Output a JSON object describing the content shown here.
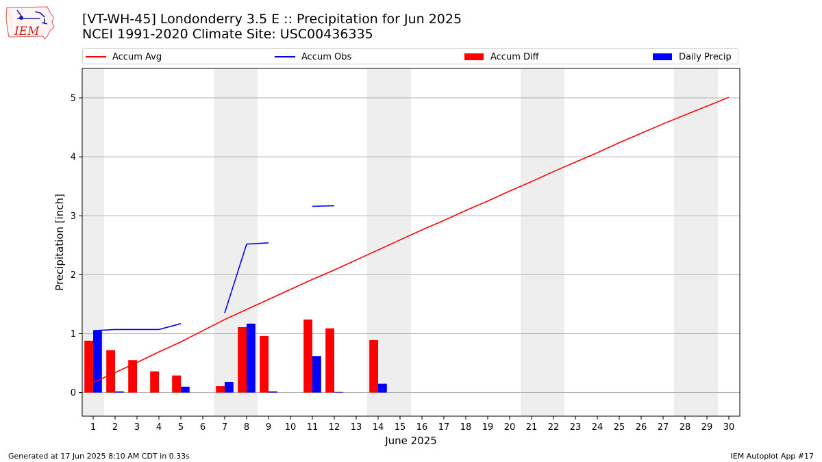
{
  "header": {
    "title_line1": "[VT-WH-45] Londonderry 3.5 E :: Precipitation for Jun 2025",
    "title_line2": "NCEI 1991-2020 Climate Site: USC00436335"
  },
  "logo": {
    "text": "IEM",
    "icon": "iowa-state-outline-logo"
  },
  "legend": {
    "accum_avg": "Accum Avg",
    "accum_obs": "Accum Obs",
    "accum_diff": "Accum Diff",
    "daily_precip": "Daily Precip"
  },
  "colors": {
    "accum_avg": "#ff0000",
    "accum_obs": "#0000ff",
    "accum_diff": "#ff0000",
    "daily_precip": "#0000ff",
    "weekend_band": "#eeeeee",
    "grid": "#b0b0b0"
  },
  "footer": {
    "left": "Generated at 17 Jun 2025 8:10 AM CDT in 0.33s",
    "right": "IEM Autoplot App #17"
  },
  "chart_data": {
    "type": "bar",
    "xlabel": "June 2025",
    "ylabel": "Precipitation [inch]",
    "xlim": [
      0.5,
      30.5
    ],
    "ylim": [
      -0.4,
      5.5
    ],
    "yticks": [
      0,
      1,
      2,
      3,
      4,
      5
    ],
    "xticks": [
      1,
      2,
      3,
      4,
      5,
      6,
      7,
      8,
      9,
      10,
      11,
      12,
      13,
      14,
      15,
      16,
      17,
      18,
      19,
      20,
      21,
      22,
      23,
      24,
      25,
      26,
      27,
      28,
      29,
      30
    ],
    "grid": "horizontal",
    "legend_position": "top",
    "weekend_bands": [
      [
        0.5,
        1.5
      ],
      [
        6.5,
        8.5
      ],
      [
        13.5,
        15.5
      ],
      [
        20.5,
        22.5
      ],
      [
        27.5,
        29.5
      ]
    ],
    "days": [
      1,
      2,
      3,
      4,
      5,
      6,
      7,
      8,
      9,
      10,
      11,
      12,
      13,
      14,
      15,
      16,
      17,
      18,
      19,
      20,
      21,
      22,
      23,
      24,
      25,
      26,
      27,
      28,
      29,
      30
    ],
    "series": [
      {
        "name": "Accum Avg",
        "kind": "line",
        "values": [
          0.17,
          0.34,
          0.51,
          0.69,
          0.86,
          1.05,
          1.24,
          1.41,
          1.58,
          1.75,
          1.92,
          2.08,
          2.25,
          2.42,
          2.59,
          2.76,
          2.92,
          3.09,
          3.25,
          3.42,
          3.58,
          3.75,
          3.91,
          4.07,
          4.24,
          4.4,
          4.56,
          4.71,
          4.86,
          5.01
        ]
      },
      {
        "name": "Accum Obs",
        "kind": "line",
        "values": [
          1.05,
          1.07,
          1.07,
          1.07,
          1.17,
          null,
          1.35,
          2.52,
          2.54,
          null,
          3.16,
          3.17,
          null,
          null,
          null,
          null,
          null,
          null,
          null,
          null,
          null,
          null,
          null,
          null,
          null,
          null,
          null,
          null,
          null,
          null
        ]
      },
      {
        "name": "Accum Diff",
        "kind": "bar",
        "values": [
          0.88,
          0.72,
          0.55,
          0.36,
          0.29,
          null,
          0.11,
          1.11,
          0.96,
          null,
          1.24,
          1.09,
          null,
          0.89,
          null,
          null,
          null,
          null,
          null,
          null,
          null,
          null,
          null,
          null,
          null,
          null,
          null,
          null,
          null,
          null
        ]
      },
      {
        "name": "Daily Precip",
        "kind": "bar",
        "values": [
          1.05,
          0.02,
          0.0,
          0.0,
          0.1,
          null,
          0.18,
          1.17,
          0.02,
          null,
          0.62,
          0.01,
          null,
          0.15,
          null,
          null,
          null,
          null,
          null,
          null,
          null,
          null,
          null,
          null,
          null,
          null,
          null,
          null,
          null,
          null
        ]
      }
    ]
  }
}
